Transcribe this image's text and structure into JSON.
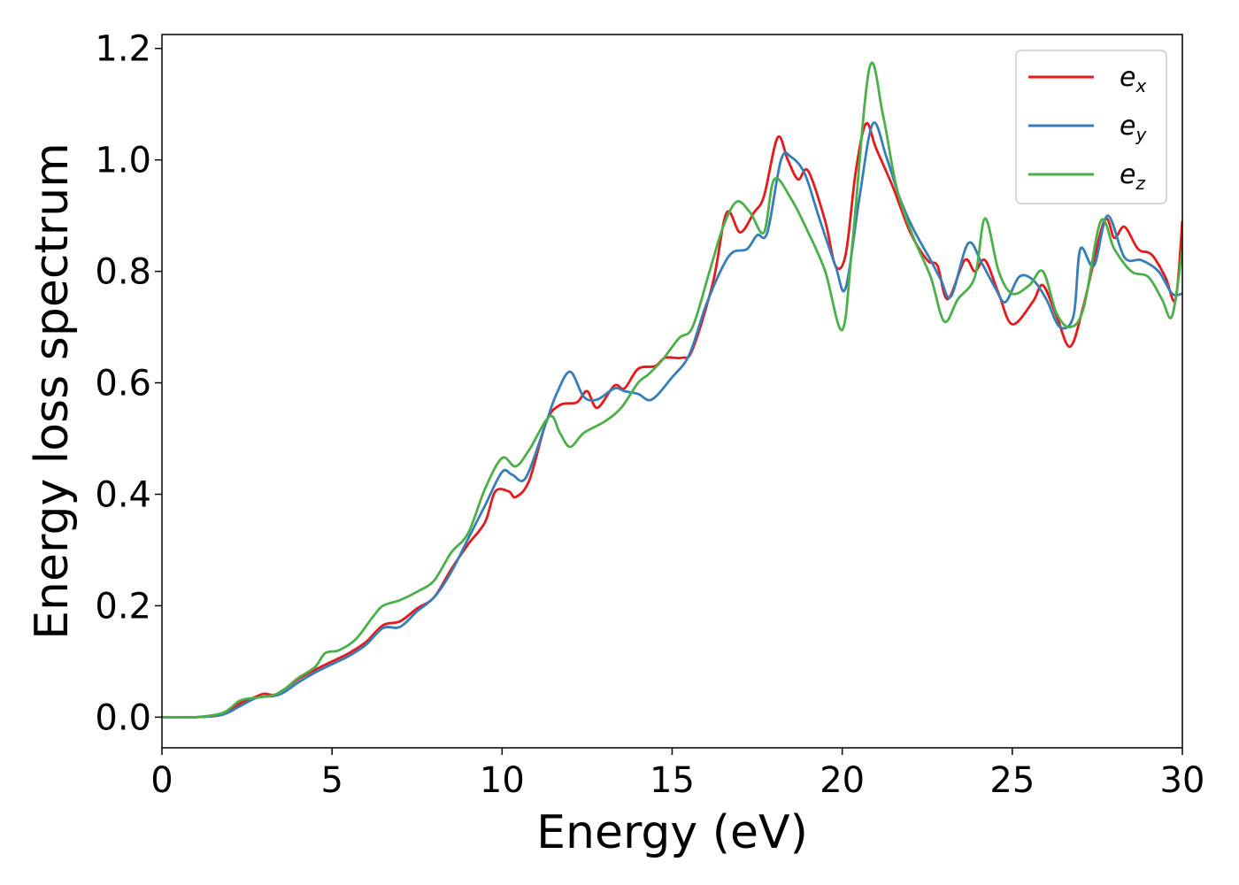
{
  "chart_data": {
    "type": "line",
    "title": "",
    "xlabel": "Energy (eV)",
    "ylabel": "Energy loss spectrum",
    "xlim": [
      0,
      30
    ],
    "ylim": [
      -0.055,
      1.225
    ],
    "xticks": [
      0,
      5,
      10,
      15,
      20,
      25,
      30
    ],
    "xtick_labels": [
      "0",
      "5",
      "10",
      "15",
      "20",
      "25",
      "30"
    ],
    "yticks": [
      0.0,
      0.2,
      0.4,
      0.6,
      0.8,
      1.0,
      1.2
    ],
    "ytick_labels": [
      "0.0",
      "0.2",
      "0.4",
      "0.6",
      "0.8",
      "1.0",
      "1.2"
    ],
    "grid": false,
    "legend_position": "top-right",
    "series": [
      {
        "name": "e_x",
        "legend_base": "e",
        "legend_sub": "x",
        "color": "#e41a1c",
        "points": [
          [
            0,
            0.0
          ],
          [
            1.0,
            0.0
          ],
          [
            1.8,
            0.005
          ],
          [
            2.3,
            0.025
          ],
          [
            2.7,
            0.035
          ],
          [
            3.0,
            0.042
          ],
          [
            3.3,
            0.04
          ],
          [
            3.6,
            0.05
          ],
          [
            4.0,
            0.068
          ],
          [
            4.5,
            0.085
          ],
          [
            5.0,
            0.1
          ],
          [
            5.5,
            0.115
          ],
          [
            6.0,
            0.135
          ],
          [
            6.5,
            0.165
          ],
          [
            7.0,
            0.172
          ],
          [
            7.5,
            0.195
          ],
          [
            8.0,
            0.215
          ],
          [
            8.5,
            0.265
          ],
          [
            9.0,
            0.31
          ],
          [
            9.5,
            0.35
          ],
          [
            9.8,
            0.405
          ],
          [
            10.2,
            0.405
          ],
          [
            10.4,
            0.395
          ],
          [
            10.8,
            0.425
          ],
          [
            11.3,
            0.53
          ],
          [
            11.7,
            0.56
          ],
          [
            12.2,
            0.565
          ],
          [
            12.5,
            0.585
          ],
          [
            12.8,
            0.555
          ],
          [
            13.3,
            0.595
          ],
          [
            13.6,
            0.59
          ],
          [
            14.0,
            0.625
          ],
          [
            14.5,
            0.63
          ],
          [
            14.8,
            0.645
          ],
          [
            15.3,
            0.645
          ],
          [
            15.6,
            0.66
          ],
          [
            16.2,
            0.78
          ],
          [
            16.6,
            0.905
          ],
          [
            17.0,
            0.87
          ],
          [
            17.4,
            0.905
          ],
          [
            17.7,
            0.935
          ],
          [
            18.1,
            1.04
          ],
          [
            18.4,
            1.0
          ],
          [
            18.7,
            0.965
          ],
          [
            19.0,
            0.98
          ],
          [
            19.5,
            0.89
          ],
          [
            19.8,
            0.81
          ],
          [
            20.1,
            0.83
          ],
          [
            20.4,
            0.98
          ],
          [
            20.7,
            1.065
          ],
          [
            21.0,
            1.02
          ],
          [
            21.5,
            0.95
          ],
          [
            22.0,
            0.87
          ],
          [
            22.5,
            0.82
          ],
          [
            22.8,
            0.81
          ],
          [
            23.1,
            0.75
          ],
          [
            23.6,
            0.82
          ],
          [
            23.9,
            0.8
          ],
          [
            24.2,
            0.82
          ],
          [
            24.6,
            0.76
          ],
          [
            25.0,
            0.705
          ],
          [
            25.6,
            0.745
          ],
          [
            25.9,
            0.775
          ],
          [
            26.3,
            0.72
          ],
          [
            26.7,
            0.665
          ],
          [
            27.1,
            0.74
          ],
          [
            27.7,
            0.89
          ],
          [
            28.0,
            0.86
          ],
          [
            28.3,
            0.88
          ],
          [
            28.7,
            0.84
          ],
          [
            29.1,
            0.83
          ],
          [
            29.5,
            0.79
          ],
          [
            29.8,
            0.75
          ],
          [
            30.0,
            0.89
          ]
        ]
      },
      {
        "name": "e_y",
        "legend_base": "e",
        "legend_sub": "y",
        "color": "#377eb8",
        "points": [
          [
            0,
            0.0
          ],
          [
            1.0,
            0.0
          ],
          [
            1.8,
            0.005
          ],
          [
            2.3,
            0.02
          ],
          [
            2.8,
            0.035
          ],
          [
            3.3,
            0.038
          ],
          [
            3.6,
            0.045
          ],
          [
            4.0,
            0.062
          ],
          [
            4.5,
            0.08
          ],
          [
            5.0,
            0.095
          ],
          [
            5.5,
            0.11
          ],
          [
            6.0,
            0.13
          ],
          [
            6.5,
            0.16
          ],
          [
            7.0,
            0.162
          ],
          [
            7.5,
            0.19
          ],
          [
            8.0,
            0.215
          ],
          [
            8.5,
            0.26
          ],
          [
            9.0,
            0.32
          ],
          [
            9.5,
            0.38
          ],
          [
            10.0,
            0.44
          ],
          [
            10.3,
            0.435
          ],
          [
            10.7,
            0.43
          ],
          [
            11.3,
            0.53
          ],
          [
            11.6,
            0.58
          ],
          [
            12.0,
            0.62
          ],
          [
            12.4,
            0.575
          ],
          [
            12.8,
            0.57
          ],
          [
            13.3,
            0.59
          ],
          [
            13.6,
            0.585
          ],
          [
            14.0,
            0.58
          ],
          [
            14.4,
            0.57
          ],
          [
            15.0,
            0.61
          ],
          [
            15.5,
            0.65
          ],
          [
            16.0,
            0.74
          ],
          [
            16.5,
            0.81
          ],
          [
            16.8,
            0.835
          ],
          [
            17.2,
            0.84
          ],
          [
            17.5,
            0.865
          ],
          [
            17.8,
            0.87
          ],
          [
            18.2,
            1.0
          ],
          [
            18.5,
            1.005
          ],
          [
            18.9,
            0.975
          ],
          [
            19.3,
            0.9
          ],
          [
            19.8,
            0.81
          ],
          [
            20.1,
            0.77
          ],
          [
            20.5,
            0.93
          ],
          [
            20.9,
            1.065
          ],
          [
            21.3,
            1.005
          ],
          [
            21.7,
            0.93
          ],
          [
            22.1,
            0.875
          ],
          [
            22.6,
            0.82
          ],
          [
            22.9,
            0.785
          ],
          [
            23.2,
            0.755
          ],
          [
            23.7,
            0.85
          ],
          [
            24.1,
            0.815
          ],
          [
            24.5,
            0.77
          ],
          [
            24.8,
            0.745
          ],
          [
            25.2,
            0.79
          ],
          [
            25.6,
            0.785
          ],
          [
            26.0,
            0.75
          ],
          [
            26.4,
            0.7
          ],
          [
            26.8,
            0.72
          ],
          [
            27.0,
            0.84
          ],
          [
            27.4,
            0.81
          ],
          [
            27.8,
            0.9
          ],
          [
            28.3,
            0.825
          ],
          [
            28.8,
            0.82
          ],
          [
            29.3,
            0.8
          ],
          [
            29.7,
            0.76
          ],
          [
            30.0,
            0.76
          ]
        ]
      },
      {
        "name": "e_z",
        "legend_base": "e",
        "legend_sub": "z",
        "color": "#4daf4a",
        "points": [
          [
            0,
            0.0
          ],
          [
            1.0,
            0.0
          ],
          [
            1.8,
            0.008
          ],
          [
            2.3,
            0.03
          ],
          [
            2.8,
            0.035
          ],
          [
            3.3,
            0.04
          ],
          [
            3.6,
            0.05
          ],
          [
            4.0,
            0.07
          ],
          [
            4.5,
            0.09
          ],
          [
            4.8,
            0.115
          ],
          [
            5.2,
            0.12
          ],
          [
            5.7,
            0.14
          ],
          [
            6.2,
            0.18
          ],
          [
            6.5,
            0.2
          ],
          [
            7.0,
            0.21
          ],
          [
            7.5,
            0.225
          ],
          [
            8.0,
            0.245
          ],
          [
            8.5,
            0.295
          ],
          [
            9.0,
            0.33
          ],
          [
            9.5,
            0.41
          ],
          [
            10.0,
            0.465
          ],
          [
            10.4,
            0.45
          ],
          [
            10.8,
            0.48
          ],
          [
            11.4,
            0.54
          ],
          [
            11.7,
            0.51
          ],
          [
            12.0,
            0.485
          ],
          [
            12.4,
            0.51
          ],
          [
            13.0,
            0.53
          ],
          [
            13.5,
            0.555
          ],
          [
            14.0,
            0.6
          ],
          [
            14.3,
            0.615
          ],
          [
            14.7,
            0.64
          ],
          [
            15.2,
            0.68
          ],
          [
            15.6,
            0.7
          ],
          [
            16.1,
            0.8
          ],
          [
            16.5,
            0.88
          ],
          [
            16.9,
            0.925
          ],
          [
            17.3,
            0.905
          ],
          [
            17.7,
            0.87
          ],
          [
            18.0,
            0.965
          ],
          [
            18.5,
            0.93
          ],
          [
            19.0,
            0.87
          ],
          [
            19.5,
            0.8
          ],
          [
            20.0,
            0.695
          ],
          [
            20.3,
            0.85
          ],
          [
            20.8,
            1.165
          ],
          [
            21.2,
            1.08
          ],
          [
            21.6,
            0.95
          ],
          [
            22.1,
            0.86
          ],
          [
            22.6,
            0.79
          ],
          [
            23.0,
            0.71
          ],
          [
            23.4,
            0.75
          ],
          [
            23.9,
            0.79
          ],
          [
            24.2,
            0.895
          ],
          [
            24.6,
            0.8
          ],
          [
            25.0,
            0.76
          ],
          [
            25.5,
            0.775
          ],
          [
            25.9,
            0.8
          ],
          [
            26.3,
            0.725
          ],
          [
            26.7,
            0.7
          ],
          [
            27.1,
            0.735
          ],
          [
            27.6,
            0.89
          ],
          [
            28.0,
            0.84
          ],
          [
            28.5,
            0.8
          ],
          [
            29.0,
            0.79
          ],
          [
            29.4,
            0.75
          ],
          [
            29.7,
            0.72
          ],
          [
            30.0,
            0.84
          ]
        ]
      }
    ]
  }
}
